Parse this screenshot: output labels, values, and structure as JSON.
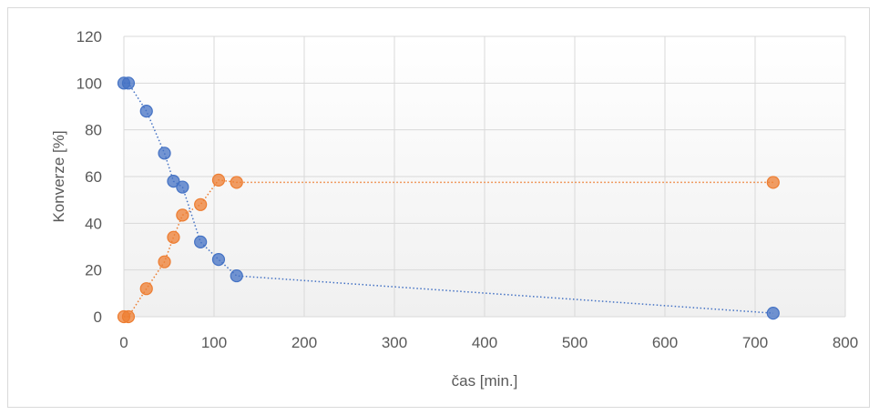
{
  "chart_data": {
    "type": "scatter",
    "title": "",
    "xlabel": "čas [min.]",
    "ylabel": "Konverze [%]",
    "xlim": [
      0,
      800
    ],
    "ylim": [
      0,
      120
    ],
    "x_ticks": [
      0,
      100,
      200,
      300,
      400,
      500,
      600,
      700,
      800
    ],
    "y_ticks": [
      0,
      20,
      40,
      60,
      80,
      100,
      120
    ],
    "grid": true,
    "legend": "none",
    "line_style": "dotted",
    "series": [
      {
        "color": "#4472c4",
        "points": [
          {
            "x": 0,
            "y": 100
          },
          {
            "x": 5,
            "y": 100
          },
          {
            "x": 25,
            "y": 88
          },
          {
            "x": 45,
            "y": 70
          },
          {
            "x": 55,
            "y": 58
          },
          {
            "x": 65,
            "y": 55.5
          },
          {
            "x": 85,
            "y": 32
          },
          {
            "x": 105,
            "y": 24.5
          },
          {
            "x": 125,
            "y": 17.5
          },
          {
            "x": 720,
            "y": 1.5
          }
        ]
      },
      {
        "color": "#ed7d31",
        "points": [
          {
            "x": 0,
            "y": 0
          },
          {
            "x": 5,
            "y": 0
          },
          {
            "x": 25,
            "y": 12
          },
          {
            "x": 45,
            "y": 23.5
          },
          {
            "x": 55,
            "y": 34
          },
          {
            "x": 65,
            "y": 43.5
          },
          {
            "x": 85,
            "y": 48
          },
          {
            "x": 105,
            "y": 58.5
          },
          {
            "x": 125,
            "y": 57.5
          },
          {
            "x": 720,
            "y": 57.5
          }
        ]
      }
    ]
  }
}
